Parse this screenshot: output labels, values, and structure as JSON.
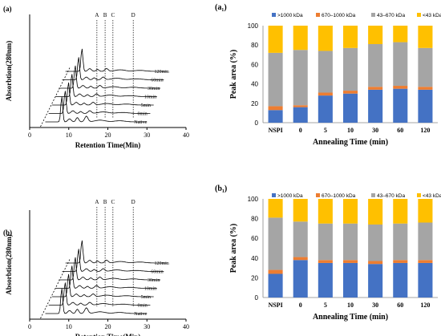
{
  "chart_data": [
    {
      "id": "a",
      "panel_label": "(a)",
      "type": "line",
      "xlabel": "Retention Time(Min)",
      "ylabel": "Absorbtion(280nm)",
      "xlim": [
        0,
        40
      ],
      "x_ticks": [
        "0",
        "10",
        "20",
        "30",
        "40"
      ],
      "peak_letters": [
        "A",
        "B",
        "C",
        "D"
      ],
      "traces": [
        "Native",
        "0min",
        "5min",
        "10min",
        "30min",
        "60min",
        "120min"
      ]
    },
    {
      "id": "a1",
      "panel_label": "(a₁)",
      "type": "bar",
      "stacked": true,
      "xlabel": "Annealing Time (min)",
      "ylabel": "Peak area (%)",
      "ylim": [
        0,
        100
      ],
      "y_ticks": [
        "0",
        "20",
        "40",
        "60",
        "80",
        "100"
      ],
      "categories": [
        "NSPI",
        "0",
        "5",
        "10",
        "30",
        "60",
        "120"
      ],
      "legend_position": "top",
      "series": [
        {
          "name": ">1000 kDa",
          "color": "#4472C4",
          "values": [
            13,
            16,
            28,
            30,
            34,
            35,
            34
          ]
        },
        {
          "name": "670–1000 kDa",
          "color": "#ED7D31",
          "values": [
            4,
            2,
            3,
            3,
            3,
            3,
            3
          ]
        },
        {
          "name": "43–670 kDa",
          "color": "#A5A5A5",
          "values": [
            55,
            57,
            43,
            44,
            44,
            45,
            40
          ]
        },
        {
          "name": "<43 kDa",
          "color": "#FFC000",
          "values": [
            28,
            25,
            26,
            23,
            19,
            17,
            23
          ]
        }
      ]
    },
    {
      "id": "b",
      "panel_label": "(b)",
      "type": "line",
      "xlabel": "Retention Time(Min)",
      "ylabel": "Absorbtion(280nm)",
      "xlim": [
        0,
        40
      ],
      "x_ticks": [
        "0",
        "10",
        "20",
        "30",
        "40"
      ],
      "peak_letters": [
        "A",
        "B",
        "C",
        "D"
      ],
      "traces": [
        "Native",
        "0min",
        "5min",
        "10min",
        "30min",
        "60min",
        "120min"
      ]
    },
    {
      "id": "b1",
      "panel_label": "(b₁)",
      "type": "bar",
      "stacked": true,
      "xlabel": "Annealing Time (min)",
      "ylabel": "Peak area (%)",
      "ylim": [
        0,
        100
      ],
      "y_ticks": [
        "0",
        "20",
        "40",
        "60",
        "80",
        "100"
      ],
      "categories": [
        "NSPI",
        "0",
        "5",
        "10",
        "30",
        "60",
        "120"
      ],
      "legend_position": "top",
      "series": [
        {
          "name": ">1000 kDa",
          "color": "#4472C4",
          "values": [
            24,
            38,
            35,
            35,
            34,
            35,
            35
          ]
        },
        {
          "name": "670–1000 kDa",
          "color": "#ED7D31",
          "values": [
            4,
            3,
            3,
            3,
            3,
            3,
            3
          ]
        },
        {
          "name": "43–670 kDa",
          "color": "#A5A5A5",
          "values": [
            53,
            36,
            37,
            37,
            37,
            37,
            38
          ]
        },
        {
          "name": "<43 kDa",
          "color": "#FFC000",
          "values": [
            19,
            23,
            25,
            25,
            26,
            25,
            24
          ]
        }
      ]
    }
  ]
}
